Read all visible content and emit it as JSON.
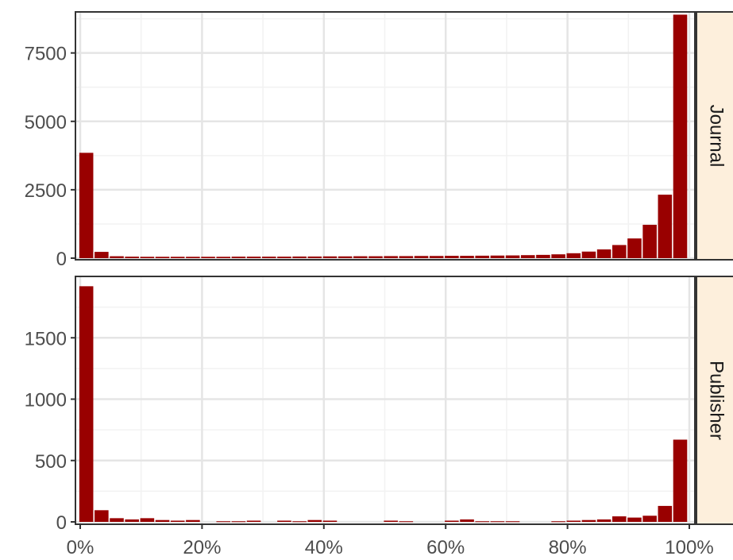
{
  "chart_data": {
    "type": "bar",
    "bar_color": "#990000",
    "strip_fill": "#FDEFDC",
    "grid_major_color": "#E5E5E5",
    "grid_minor_color": "#F2F2F2",
    "x_ticks": [
      "0%",
      "20%",
      "40%",
      "60%",
      "80%",
      "100%"
    ],
    "x_tick_values": [
      0,
      20,
      40,
      60,
      80,
      100
    ],
    "xlim": [
      0,
      100
    ],
    "panels": [
      {
        "name": "Journal",
        "ylim": [
          0,
          9000
        ],
        "y_ticks": [
          "0",
          "2500",
          "5000",
          "7500"
        ],
        "y_tick_values": [
          0,
          2500,
          5000,
          7500
        ],
        "bins": [
          1,
          3.5,
          6,
          8.5,
          11,
          13.5,
          16,
          18.5,
          21,
          23.5,
          26,
          28.5,
          31,
          33.5,
          36,
          38.5,
          41,
          43.5,
          46,
          48.5,
          51,
          53.5,
          56,
          58.5,
          61,
          63.5,
          66,
          68.5,
          71,
          73.5,
          76,
          78.5,
          81,
          83.5,
          86,
          88.5,
          91,
          93.5,
          96,
          98.5
        ],
        "values": [
          3850,
          230,
          70,
          55,
          50,
          50,
          50,
          50,
          50,
          50,
          55,
          55,
          55,
          55,
          60,
          60,
          65,
          65,
          70,
          70,
          75,
          75,
          80,
          80,
          85,
          85,
          90,
          95,
          100,
          110,
          120,
          140,
          180,
          240,
          320,
          480,
          720,
          1220,
          2320,
          8900
        ]
      },
      {
        "name": "Publisher",
        "ylim": [
          0,
          2000
        ],
        "y_ticks": [
          "0",
          "500",
          "1000",
          "1500"
        ],
        "y_tick_values": [
          0,
          500,
          1000,
          1500
        ],
        "bins": [
          1,
          3.5,
          6,
          8.5,
          11,
          13.5,
          16,
          18.5,
          21,
          23.5,
          26,
          28.5,
          31,
          33.5,
          36,
          38.5,
          41,
          43.5,
          46,
          48.5,
          51,
          53.5,
          56,
          58.5,
          61,
          63.5,
          66,
          68.5,
          71,
          73.5,
          76,
          78.5,
          81,
          83.5,
          86,
          88.5,
          91,
          93.5,
          96,
          98.5
        ],
        "values": [
          1920,
          95,
          30,
          20,
          30,
          15,
          10,
          15,
          0,
          5,
          5,
          10,
          0,
          10,
          5,
          15,
          10,
          0,
          0,
          0,
          10,
          5,
          0,
          0,
          10,
          20,
          5,
          5,
          5,
          0,
          0,
          5,
          10,
          15,
          20,
          45,
          35,
          50,
          130,
          670
        ]
      }
    ]
  }
}
